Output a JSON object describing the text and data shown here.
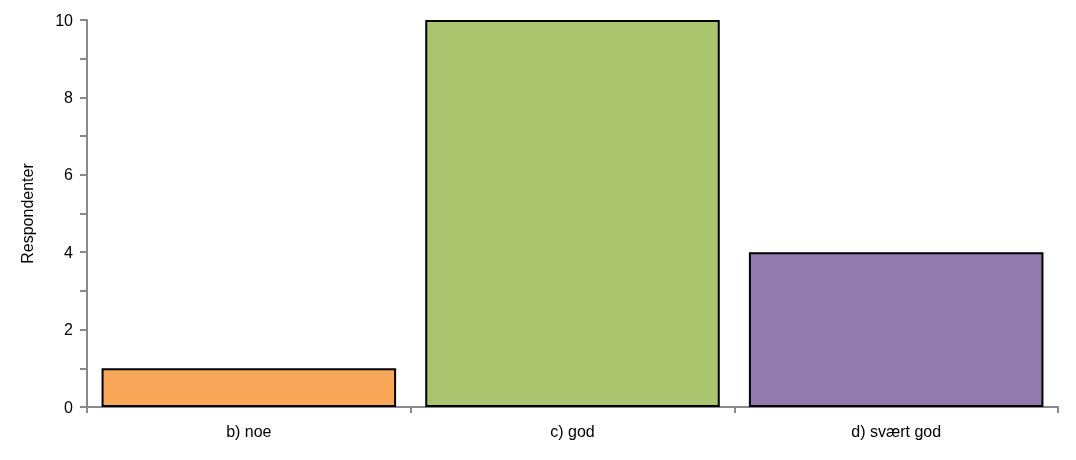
{
  "chart_data": {
    "type": "bar",
    "categories": [
      "b) noe",
      "c) god",
      "d) svært god"
    ],
    "values": [
      1,
      10,
      4
    ],
    "colors": [
      "#f9a85a",
      "#abc56f",
      "#937bb0"
    ],
    "ylabel": "Respondenter",
    "ylim": [
      0,
      10
    ],
    "yticks": [
      0,
      {
        "value": 1,
        "label": null
      },
      2,
      {
        "value": 3,
        "label": null
      },
      4,
      {
        "value": 5,
        "label": null
      },
      6,
      {
        "value": 7,
        "label": null
      },
      8,
      {
        "value": 9,
        "label": null
      },
      10
    ],
    "grid": false
  }
}
